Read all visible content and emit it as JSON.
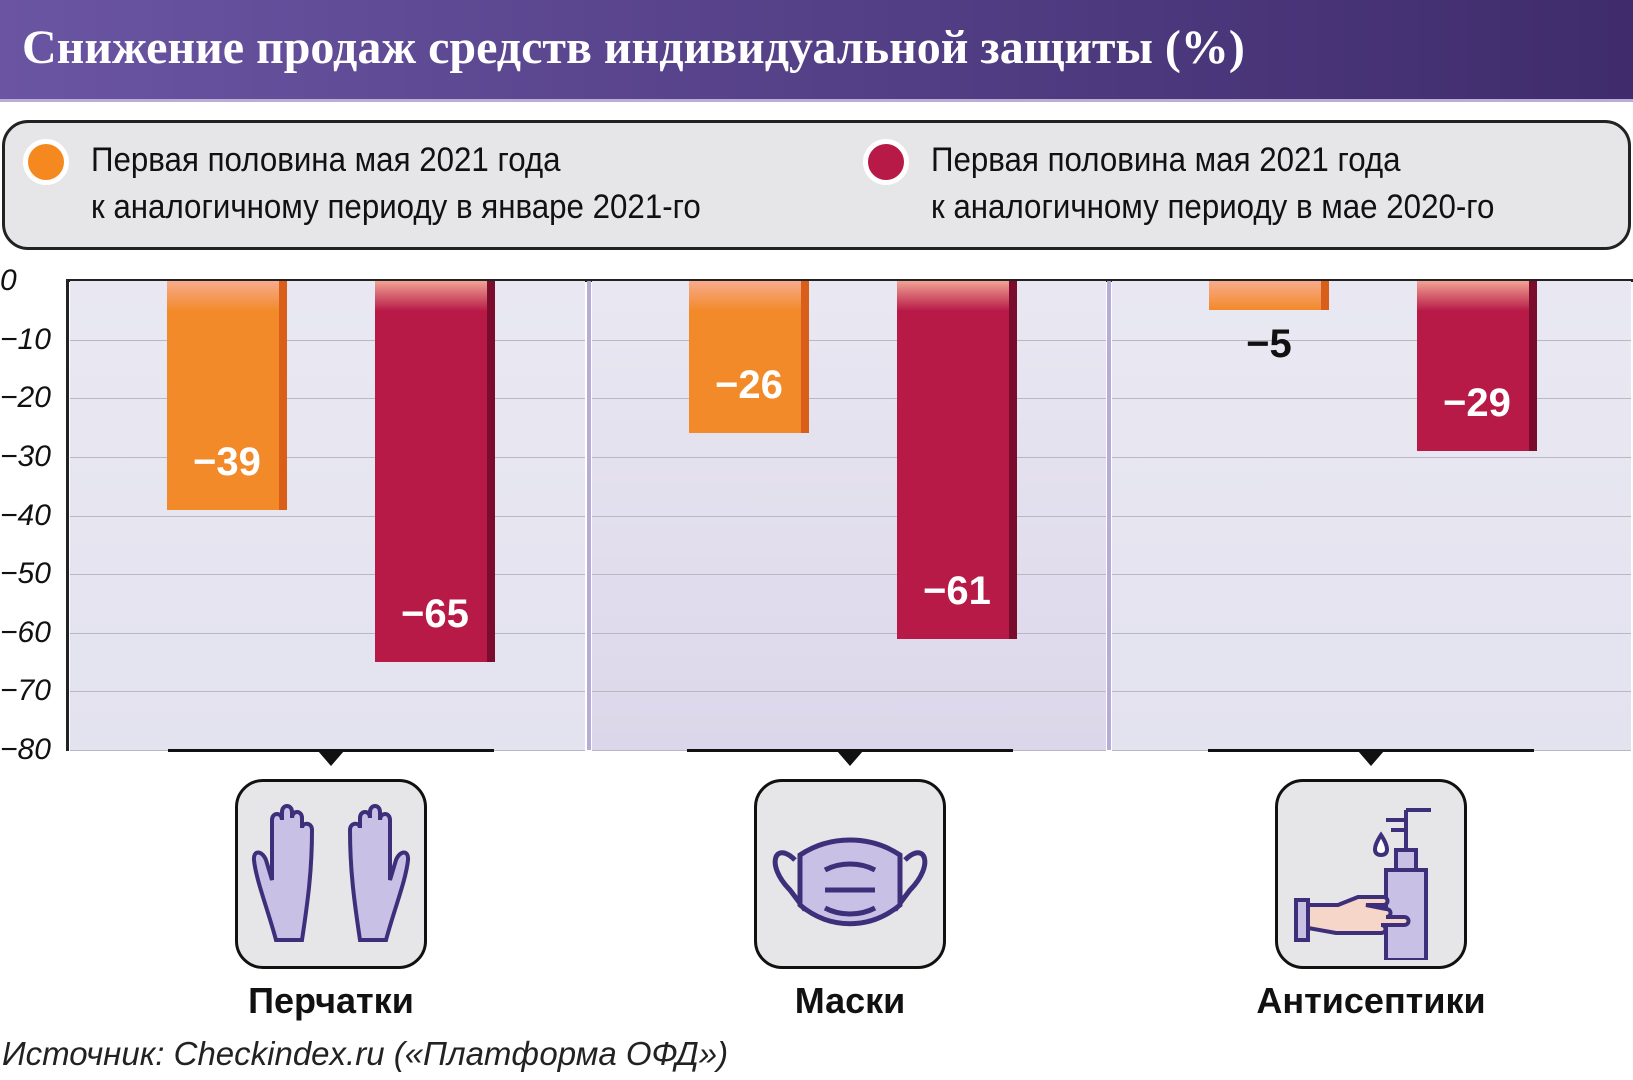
{
  "header": {
    "title": "Снижение продаж средств индивидуальной защиты (%)"
  },
  "legend": [
    {
      "line1": "Первая половина мая 2021 года",
      "line2": "к аналогичному периоду в январе 2021-го",
      "color": "#f5891f"
    },
    {
      "line1": "Первая половина мая 2021 года",
      "line2": "к аналогичному периоду в мае 2020-го",
      "color": "#b81a47"
    }
  ],
  "chart_data": {
    "type": "bar",
    "title": "Снижение продаж средств индивидуальной защиты (%)",
    "categories": [
      "Перчатки",
      "Маски",
      "Антисептики"
    ],
    "series": [
      {
        "name": "Первая половина мая 2021 года к аналогичному периоду в январе 2021-го",
        "values": [
          -39,
          -26,
          -5
        ],
        "labels": [
          "−39",
          "−26",
          "−5"
        ]
      },
      {
        "name": "Первая половина мая 2021 года к аналогичному периоду в мае 2020-го",
        "values": [
          -65,
          -61,
          -29
        ],
        "labels": [
          "−65",
          "−61",
          "−29"
        ]
      }
    ],
    "ylim": [
      -80,
      0
    ],
    "yticks": [
      "0",
      "−10",
      "−20",
      "−30",
      "−40",
      "−50",
      "−60",
      "−70",
      "−80"
    ],
    "grid": true,
    "legend_position": "top"
  },
  "icons": [
    "gloves-icon",
    "mask-icon",
    "sanitizer-icon"
  ],
  "source": "Источник: Checkindex.ru («Платформа ОФД»)"
}
